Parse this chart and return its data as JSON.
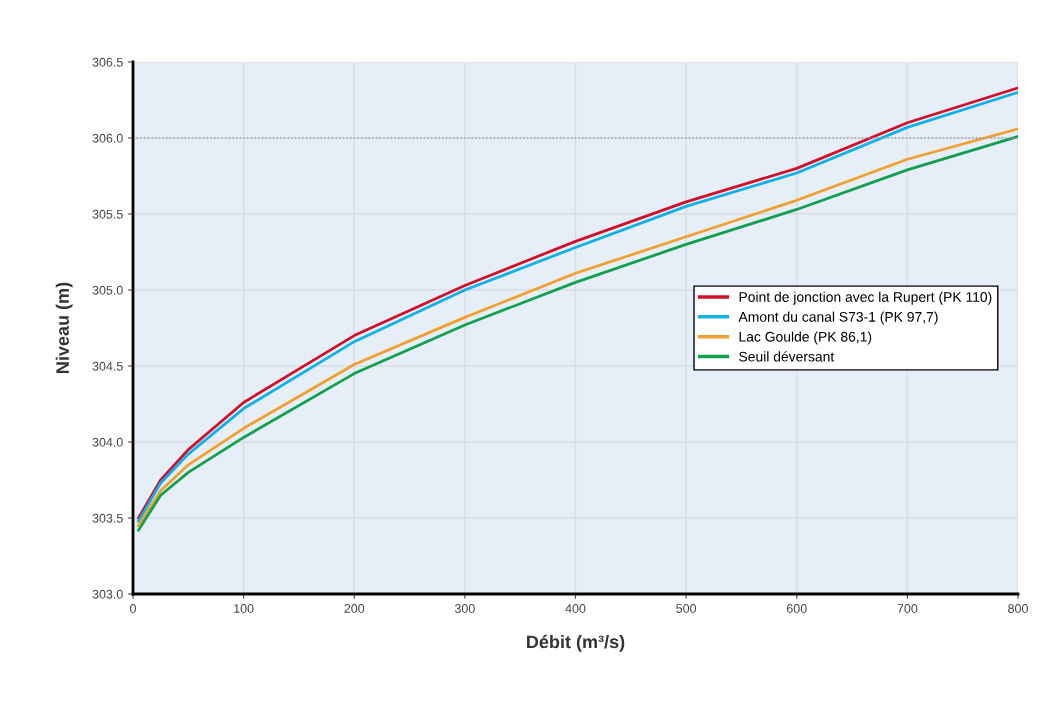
{
  "chart_data": {
    "type": "line",
    "xlabel": "Débit (m³/s)",
    "ylabel": "Niveau (m)",
    "x": [
      5,
      25,
      50,
      100,
      200,
      300,
      400,
      500,
      600,
      700,
      800
    ],
    "series": [
      {
        "name": "Point de jonction avec la Rupert (PK 110)",
        "color": "#d0102a",
        "values": [
          303.5,
          303.75,
          303.95,
          304.26,
          304.7,
          305.03,
          305.32,
          305.58,
          305.8,
          306.1,
          306.33
        ]
      },
      {
        "name": "Amont du canal S73-1 (PK 97,7)",
        "color": "#10b0e8",
        "values": [
          303.48,
          303.73,
          303.92,
          304.22,
          304.66,
          305.0,
          305.28,
          305.55,
          305.77,
          306.07,
          306.3
        ]
      },
      {
        "name": "Lac Goulde (PK 86,1)",
        "color": "#f0a030",
        "values": [
          303.45,
          303.68,
          303.85,
          304.09,
          304.51,
          304.82,
          305.11,
          305.35,
          305.59,
          305.86,
          306.06
        ]
      },
      {
        "name": "Seuil déversant",
        "color": "#10a050",
        "values": [
          303.42,
          303.65,
          303.8,
          304.03,
          304.45,
          304.77,
          305.05,
          305.3,
          305.53,
          305.79,
          306.01
        ]
      }
    ],
    "xlim": [
      0,
      800
    ],
    "xticks": [
      0,
      100,
      200,
      300,
      400,
      500,
      600,
      700,
      800
    ],
    "ylim": [
      303.0,
      306.5
    ],
    "yticks": [
      {
        "value": 303.0,
        "label": "303.0"
      },
      {
        "value": 303.5,
        "label": "303.5"
      },
      {
        "value": 304.0,
        "label": "304.0"
      },
      {
        "value": 304.5,
        "label": "304.5"
      },
      {
        "value": 305.0,
        "label": "305.0"
      },
      {
        "value": 305.5,
        "label": "305.5"
      },
      {
        "value": 306.0,
        "label": "306.0"
      },
      {
        "value": 306.5,
        "label": "306.5"
      }
    ],
    "ref_lines": [
      {
        "axis": "y",
        "value": 306.0,
        "color": "#999999",
        "line_style": "dotted"
      }
    ],
    "grid": true,
    "legend": "right",
    "line_style": "solid",
    "marker": "none"
  }
}
